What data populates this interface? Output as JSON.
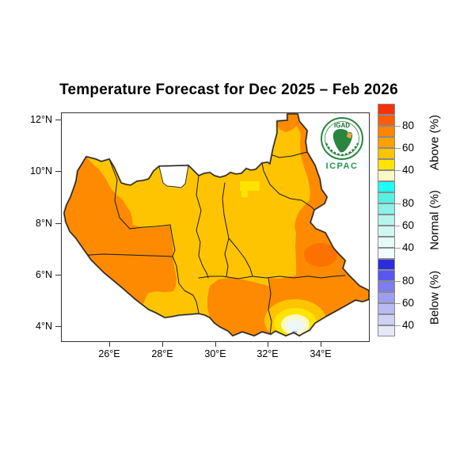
{
  "title": "Temperature Forecast for Dec 2025 – Feb 2026",
  "map": {
    "x_ticks": [
      "26°E",
      "28°E",
      "30°E",
      "32°E",
      "34°E"
    ],
    "y_ticks": [
      "12°N",
      "10°N",
      "8°N",
      "6°N",
      "4°N"
    ],
    "fill_colors": {
      "orange": "#fd8a01",
      "deep_orange": "#fb7200",
      "amber": "#fec401",
      "bright_yellow": "#ffe301",
      "cream": "#fdf8c4",
      "pale_center": "#edf8f7",
      "lavender_spot": "#b9b9f3",
      "no_data_enclave": "#ffffff",
      "boundary": "#1a1a1a"
    }
  },
  "legend": {
    "sections": [
      {
        "label": "Above (%)",
        "ticks": [
          "80",
          "60",
          "40"
        ],
        "colors": [
          "#f5330a",
          "#fd5c00",
          "#fe8501",
          "#ffa101",
          "#ffc301",
          "#ffe301",
          "#fdf8c4"
        ]
      },
      {
        "label": "Normal (%)",
        "ticks": [
          "80",
          "60",
          "40"
        ],
        "colors": [
          "#1cfff4",
          "#55f2e4",
          "#8af3e7",
          "#b5f5ec",
          "#d0f8f2",
          "#e3fbf7",
          "#f1fdfb"
        ]
      },
      {
        "label": "Below (%)",
        "ticks": [
          "80",
          "60",
          "40"
        ],
        "colors": [
          "#2c2cdf",
          "#5858ee",
          "#7d7def",
          "#9d9df1",
          "#b9b9f3",
          "#d1d1f6",
          "#e7e7fa"
        ]
      }
    ]
  },
  "logo": {
    "org_top": "IGAD",
    "org_bottom": "ICPAC",
    "ring_color": "#2a8540",
    "text_color": "#1f9a4e",
    "horn_color": "#e8a33d"
  }
}
